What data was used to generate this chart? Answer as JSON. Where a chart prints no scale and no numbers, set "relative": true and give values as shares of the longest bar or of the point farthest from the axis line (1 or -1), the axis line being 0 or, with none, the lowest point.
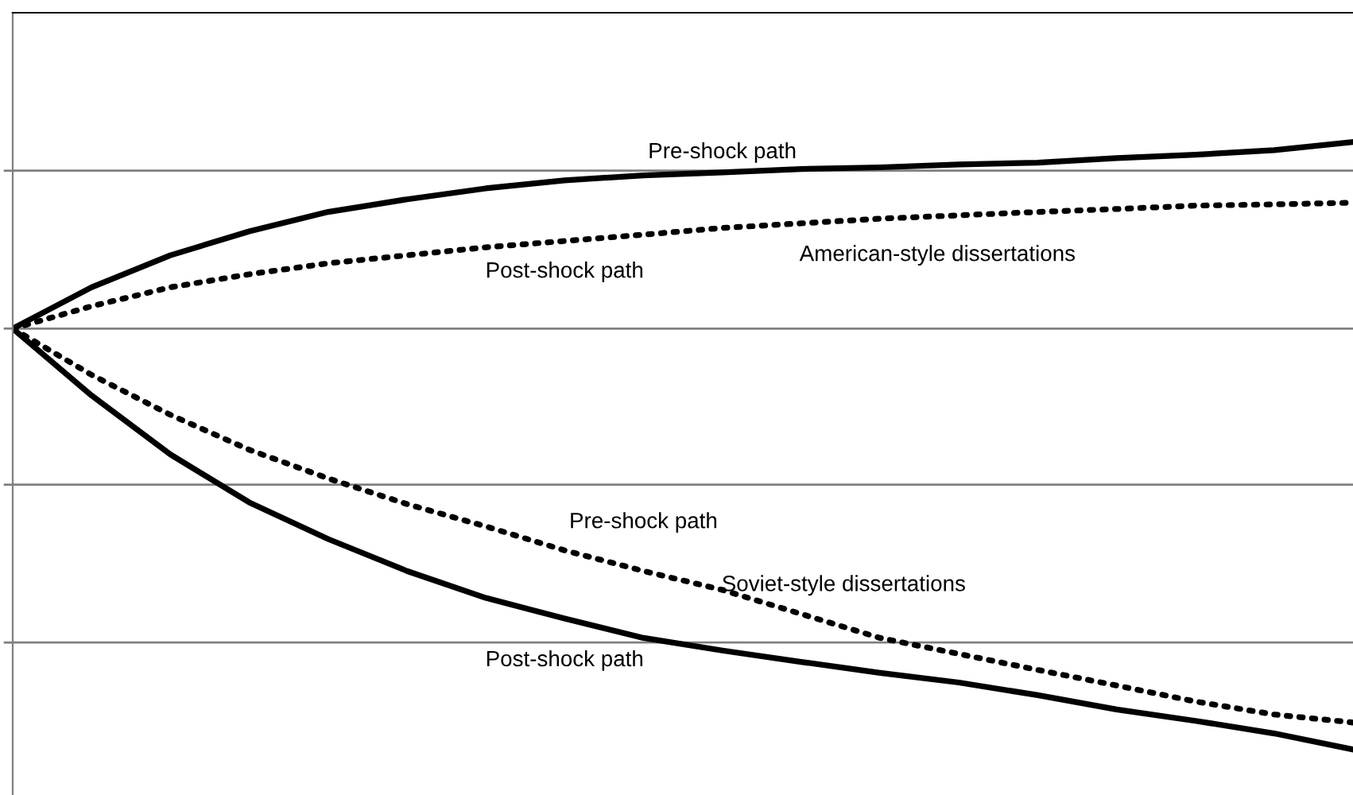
{
  "chart_data": {
    "type": "line",
    "relative": true,
    "categories": [
      null,
      null,
      null,
      null,
      null,
      null,
      null,
      null,
      null,
      null,
      null,
      null,
      null,
      null,
      null,
      null,
      null,
      null
    ],
    "series": [
      {
        "name": "Pre-shock path",
        "color": "#000000",
        "line_style": "solid",
        "values": [
          0,
          0.098,
          0.174,
          0.231,
          0.277,
          0.307,
          0.333,
          0.352,
          0.364,
          0.371,
          0.379,
          0.383,
          0.39,
          0.394,
          0.405,
          0.413,
          0.424,
          0.443
        ]
      },
      {
        "name": "Post-shock path",
        "color": "#000000",
        "line_style": "dotted",
        "values": [
          0,
          0.053,
          0.098,
          0.129,
          0.155,
          0.174,
          0.193,
          0.208,
          0.223,
          0.239,
          0.25,
          0.261,
          0.269,
          0.277,
          0.284,
          0.292,
          0.295,
          0.299
        ]
      },
      {
        "name": "Pre-shock path",
        "color": "#000000",
        "line_style": "dotted",
        "values": [
          0,
          -0.11,
          -0.205,
          -0.288,
          -0.356,
          -0.417,
          -0.47,
          -0.527,
          -0.576,
          -0.621,
          -0.678,
          -0.735,
          -0.773,
          -0.811,
          -0.848,
          -0.886,
          -0.917,
          -0.936
        ]
      },
      {
        "name": "Post-shock path",
        "color": "#000000",
        "line_style": "solid",
        "values": [
          0,
          -0.159,
          -0.299,
          -0.413,
          -0.5,
          -0.576,
          -0.64,
          -0.689,
          -0.735,
          -0.765,
          -0.792,
          -0.818,
          -0.841,
          -0.871,
          -0.905,
          -0.932,
          -0.962,
          -1
        ]
      }
    ],
    "annotations": [
      "American-style dissertations",
      "Soviet-style dissertations"
    ],
    "ref_lines": [
      {
        "axis": "y",
        "value": 0.375,
        "color": "#808080"
      },
      {
        "axis": "y",
        "value": 0,
        "color": "#808080"
      },
      {
        "axis": "y",
        "value": -0.371,
        "color": "#808080"
      },
      {
        "axis": "y",
        "value": -0.746,
        "color": "#808080"
      }
    ],
    "legend": false,
    "marker": "none"
  }
}
